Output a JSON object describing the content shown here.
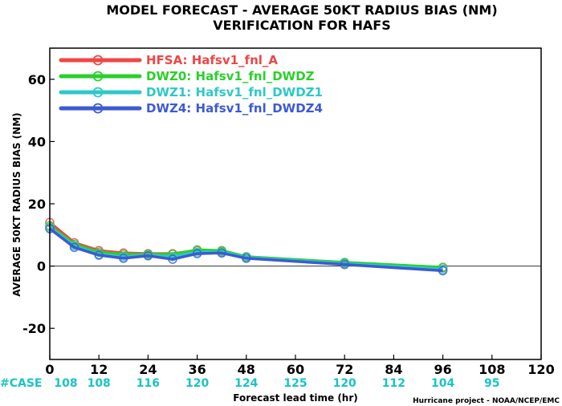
{
  "chart_data": {
    "type": "line",
    "title": "MODEL FORECAST - AVERAGE 50KT RADIUS BIAS (NM)",
    "subtitle": "VERIFICATION FOR HAFS",
    "xlabel": "Forecast lead time (hr)",
    "ylabel": "AVERAGE 50KT RADIUS BIAS (NM)",
    "xlim": [
      0,
      120
    ],
    "ylim": [
      -30,
      70
    ],
    "x_ticks": [
      0,
      12,
      24,
      36,
      48,
      60,
      72,
      84,
      96,
      108,
      120
    ],
    "y_ticks": [
      -20,
      0,
      20,
      40,
      60
    ],
    "zero_line": true,
    "legend_position": "top-left",
    "case_label": "#CASE",
    "case_counts": [
      108,
      108,
      116,
      120,
      124,
      125,
      120,
      112,
      104,
      95
    ],
    "credit": "Hurricane project - NOAA/NCEP/EMC",
    "series": [
      {
        "name": "HFSA: Hafsv1_fnl_A",
        "color": "#f04646",
        "x": [
          0,
          6,
          12,
          18,
          24,
          30,
          36,
          42,
          48,
          72,
          96
        ],
        "y": [
          14,
          7.5,
          5,
          4.2,
          4,
          4,
          5,
          4.8,
          3,
          1,
          -0.5
        ]
      },
      {
        "name": "DWZ0: Hafsv1_fnl_DWDZ",
        "color": "#2ad02a",
        "x": [
          0,
          6,
          12,
          18,
          24,
          30,
          36,
          42,
          48,
          72,
          96
        ],
        "y": [
          13,
          7,
          4.5,
          3.8,
          3.8,
          3.8,
          5.2,
          5,
          3,
          1.2,
          -0.4
        ]
      },
      {
        "name": "DWZ1: Hafsv1_fnl_DWDZ1",
        "color": "#2ec8c8",
        "x": [
          0,
          6,
          12,
          18,
          24,
          30,
          36,
          42,
          48,
          72,
          96
        ],
        "y": [
          12.5,
          6.5,
          3.8,
          3,
          3.5,
          3,
          4.5,
          4.5,
          2.8,
          0.8,
          -1
        ]
      },
      {
        "name": "DWZ4: Hafsv1_fnl_DWDZ4",
        "color": "#3c5ad2",
        "x": [
          0,
          6,
          12,
          18,
          24,
          30,
          36,
          42,
          48,
          72,
          96
        ],
        "y": [
          12,
          6,
          3.5,
          2.5,
          3.3,
          2.2,
          4,
          4.2,
          2.5,
          0.5,
          -1.5
        ]
      }
    ]
  }
}
